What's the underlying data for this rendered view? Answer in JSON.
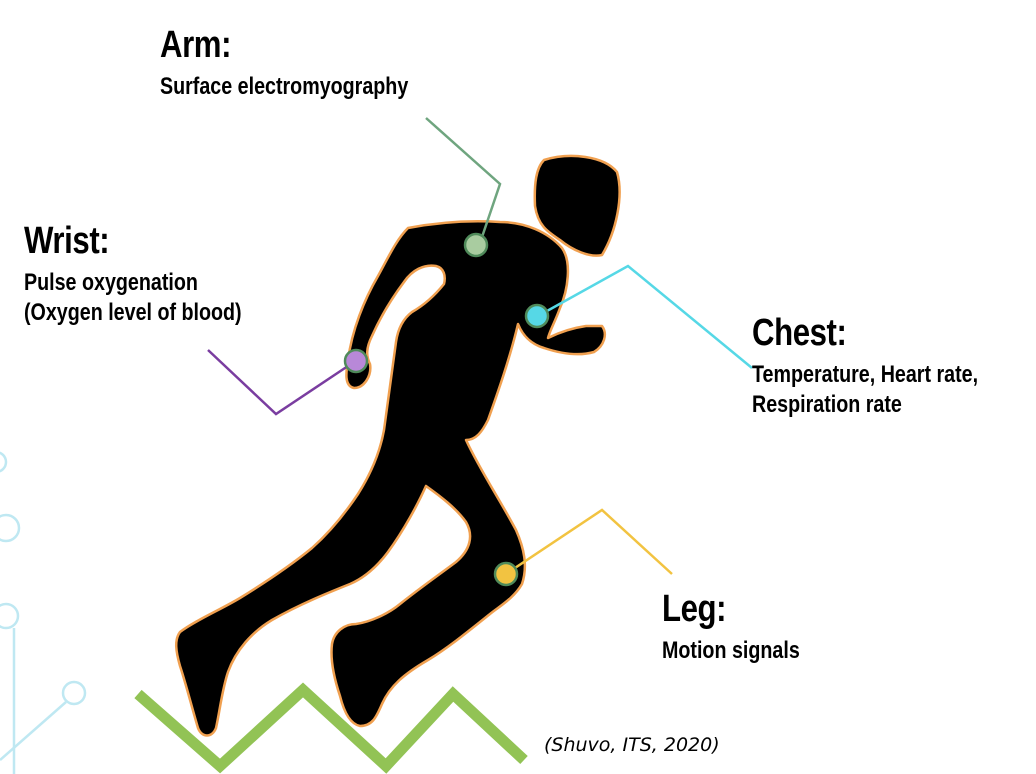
{
  "sensors": {
    "arm": {
      "title": "Arm:",
      "lines": [
        "Surface electromyography"
      ],
      "color": "#6fa57f"
    },
    "wrist": {
      "title": "Wrist:",
      "lines": [
        "Pulse oxygenation",
        "(Oxygen level of blood)"
      ],
      "color": "#7a3da0"
    },
    "chest": {
      "title": "Chest:",
      "lines": [
        "Temperature, Heart rate,",
        "Respiration rate"
      ],
      "color": "#56d8e6"
    },
    "leg": {
      "title": "Leg:",
      "lines": [
        "Motion signals"
      ],
      "color": "#f2c341"
    }
  },
  "citation": "(Shuvo, ITS, 2020)",
  "colors": {
    "silhouette": "#000000",
    "outline": "#f0a050",
    "ground": "#92c355",
    "circuit": "#bfe8f2"
  }
}
